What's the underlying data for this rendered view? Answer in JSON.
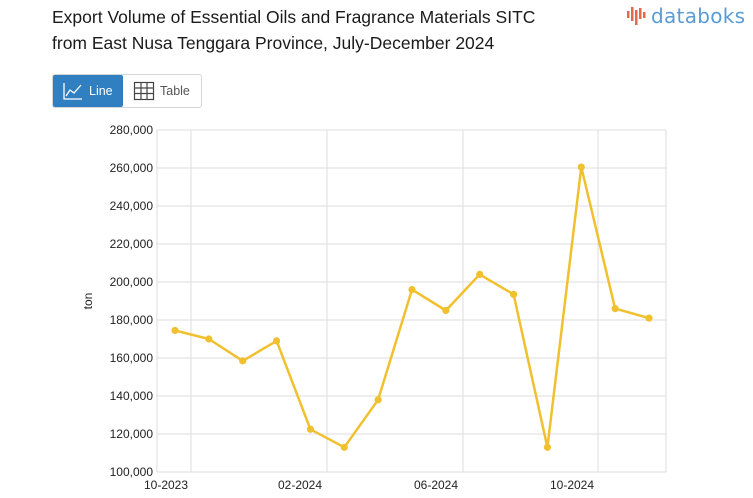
{
  "header": {
    "title_line1": "Export Volume of Essential Oils and Fragrance Materials SITC",
    "title_line2": "from East Nusa Tenggara Province, July-December 2024"
  },
  "logo": {
    "text": "databoks",
    "color": "#5b9bd5",
    "bars_color": "#e8664a"
  },
  "toggle": {
    "line_label": "Line",
    "table_label": "Table",
    "active": "Line",
    "active_color": "#2f7fc1"
  },
  "chart_data": {
    "type": "line",
    "title": "Export Volume of Essential Oils and Fragrance Materials SITC from East Nusa Tenggara Province, July-December 2024",
    "ylabel": "ton",
    "xlabel": "",
    "x_tick_labels": [
      "10-2023",
      "02-2024",
      "06-2024",
      "10-2024"
    ],
    "x": [
      "2023-10",
      "2023-11",
      "2023-12",
      "2024-01",
      "2024-02",
      "2024-03",
      "2024-04",
      "2024-05",
      "2024-06",
      "2024-07",
      "2024-08",
      "2024-09",
      "2024-10",
      "2024-11",
      "2024-12"
    ],
    "series": [
      {
        "values": [
          174500,
          170000,
          158500,
          169000,
          122500,
          113000,
          138000,
          196000,
          185000,
          204000,
          193500,
          113000,
          260500,
          186000,
          181000
        ]
      }
    ],
    "ylim": [
      100000,
      280000
    ],
    "y_ticks": [
      "100,000",
      "120,000",
      "140,000",
      "160,000",
      "180,000",
      "200,000",
      "220,000",
      "240,000",
      "260,000",
      "280,000"
    ],
    "line_color": "#f0c02f",
    "grid": true
  }
}
